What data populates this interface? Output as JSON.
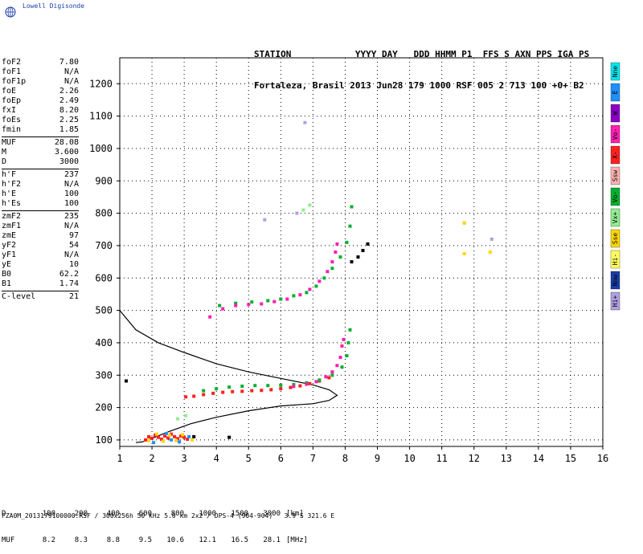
{
  "logo": {
    "text": "Lowell Digisonde",
    "icon": "globe-icon"
  },
  "header": {
    "line1": "STATION            YYYY DAY   DDD HHMM P1  FFS S AXN PPS IGA PS",
    "line2": "Fortaleza, Brasil 2013 Jun28 179 1000 RSF 005 2 713 100 +0+ B2"
  },
  "params": [
    {
      "name": "foF2",
      "value": "7.80"
    },
    {
      "name": "foF1",
      "value": "N/A"
    },
    {
      "name": "foF1p",
      "value": "N/A"
    },
    {
      "name": "foE",
      "value": "2.26"
    },
    {
      "name": "foEp",
      "value": "2.49"
    },
    {
      "name": "fxI",
      "value": "8.20"
    },
    {
      "name": "foEs",
      "value": "2.25"
    },
    {
      "name": "fmin",
      "value": "1.85"
    },
    {
      "sep": true
    },
    {
      "name": "MUF",
      "value": "28.08"
    },
    {
      "name": "M",
      "value": "3.600"
    },
    {
      "name": "D",
      "value": "3000"
    },
    {
      "sep": true
    },
    {
      "name": "h'F",
      "value": "237"
    },
    {
      "name": "h'F2",
      "value": "N/A"
    },
    {
      "name": "h'E",
      "value": "100"
    },
    {
      "name": "h'Es",
      "value": "100"
    },
    {
      "sep": true
    },
    {
      "name": "zmF2",
      "value": "235"
    },
    {
      "name": "zmF1",
      "value": "N/A"
    },
    {
      "name": "zmE",
      "value": "97"
    },
    {
      "name": "yF2",
      "value": "54"
    },
    {
      "name": "yF1",
      "value": "N/A"
    },
    {
      "name": "yE",
      "value": "10"
    },
    {
      "name": "B0",
      "value": "62.2"
    },
    {
      "name": "B1",
      "value": "1.74"
    },
    {
      "sep": true
    },
    {
      "name": "C-level",
      "value": "21"
    }
  ],
  "legend": [
    {
      "label": "Nne",
      "color": "#00e5ee"
    },
    {
      "label": "E",
      "color": "#1e90ff"
    },
    {
      "label": "W",
      "color": "#8b00c8"
    },
    {
      "label": "Vo-",
      "color": "#ff1fb0"
    },
    {
      "label": "X-",
      "color": "#ff2020"
    },
    {
      "label": "Ssw",
      "color": "#ffb0b0"
    },
    {
      "label": "Vo-",
      "color": "#00b030"
    },
    {
      "label": "Vx+",
      "color": "#90ee90"
    },
    {
      "label": "Sse",
      "color": "#ffd700"
    },
    {
      "label": "Hi-",
      "color": "#ffff60"
    },
    {
      "label": "Nnw",
      "color": "#1a3ea8"
    },
    {
      "label": "Hi+",
      "color": "#b0a0e0"
    }
  ],
  "footer": {
    "row1": [
      "D",
      "100",
      "200",
      "400",
      "600",
      "800",
      "1000",
      "1500",
      "3000",
      "[km]"
    ],
    "row2": [
      "MUF",
      "8.2",
      "8.3",
      "8.8",
      "9.5",
      "10.6",
      "12.1",
      "16.5",
      "28.1",
      "[MHz]"
    ],
    "fileinfo": "FZA0M_2013179100000.RSF / 300x256h 50 kHz 5.0 km 2x2 / DPS-4 (904-904)   3.9 S 321.6 E"
  },
  "chart_data": {
    "type": "scatter",
    "xlim": [
      1,
      16
    ],
    "ylim": [
      80,
      1280
    ],
    "xticks": [
      "1",
      "2",
      "3",
      "4",
      "5",
      "6",
      "7",
      "8",
      "9",
      "10",
      "11",
      "12",
      "13",
      "14",
      "15",
      "16"
    ],
    "yticks": [
      "100",
      "200",
      "300",
      "400",
      "500",
      "600",
      "700",
      "800",
      "900",
      "1000",
      "1100",
      "1200"
    ],
    "grid": true,
    "profile": [
      [
        1.0,
        500
      ],
      [
        1.5,
        440
      ],
      [
        2.2,
        400
      ],
      [
        3.0,
        370
      ],
      [
        4.0,
        335
      ],
      [
        5.0,
        310
      ],
      [
        6.0,
        290
      ],
      [
        7.0,
        270
      ],
      [
        7.5,
        255
      ],
      [
        7.75,
        238
      ],
      [
        7.5,
        222
      ],
      [
        7.0,
        212
      ],
      [
        6.0,
        205
      ],
      [
        5.0,
        190
      ],
      [
        4.0,
        170
      ],
      [
        3.2,
        150
      ],
      [
        2.5,
        125
      ],
      [
        2.0,
        105
      ],
      [
        1.7,
        94
      ],
      [
        1.5,
        92
      ]
    ],
    "series": [
      {
        "color": "#ff2020",
        "points": [
          [
            3.05,
            233
          ],
          [
            3.3,
            235
          ],
          [
            3.6,
            240
          ],
          [
            3.9,
            244
          ],
          [
            4.2,
            247
          ],
          [
            4.5,
            249
          ],
          [
            4.8,
            250
          ],
          [
            5.1,
            252
          ],
          [
            5.4,
            253
          ],
          [
            5.7,
            255
          ],
          [
            6.0,
            258
          ],
          [
            6.3,
            262
          ],
          [
            6.6,
            267
          ],
          [
            6.9,
            274
          ],
          [
            7.2,
            282
          ],
          [
            7.5,
            292
          ]
        ]
      },
      {
        "color": "#00b030",
        "points": [
          [
            3.6,
            252
          ],
          [
            4.0,
            258
          ],
          [
            4.4,
            263
          ],
          [
            4.8,
            266
          ],
          [
            5.2,
            268
          ],
          [
            5.6,
            268
          ],
          [
            6.0,
            269
          ],
          [
            6.4,
            271
          ],
          [
            6.8,
            276
          ],
          [
            7.2,
            285
          ],
          [
            7.6,
            300
          ],
          [
            7.9,
            325
          ],
          [
            8.05,
            360
          ],
          [
            8.1,
            400
          ],
          [
            8.15,
            440
          ]
        ]
      },
      {
        "color": "#ff1fb0",
        "points": [
          [
            6.4,
            265
          ],
          [
            6.8,
            272
          ],
          [
            7.1,
            280
          ],
          [
            7.4,
            295
          ],
          [
            7.6,
            310
          ],
          [
            7.75,
            330
          ],
          [
            7.85,
            355
          ],
          [
            7.9,
            390
          ],
          [
            7.95,
            410
          ]
        ]
      },
      {
        "color": "#00b030",
        "points": [
          [
            4.1,
            515
          ],
          [
            4.6,
            522
          ],
          [
            5.1,
            526
          ],
          [
            5.6,
            530
          ],
          [
            6.0,
            535
          ],
          [
            6.4,
            545
          ],
          [
            6.8,
            555
          ],
          [
            7.1,
            575
          ],
          [
            7.35,
            600
          ],
          [
            7.6,
            630
          ],
          [
            7.85,
            665
          ],
          [
            8.05,
            710
          ],
          [
            8.15,
            760
          ],
          [
            8.2,
            820
          ]
        ]
      },
      {
        "color": "#ff1fb0",
        "points": [
          [
            3.8,
            480
          ],
          [
            4.2,
            505
          ],
          [
            4.6,
            515
          ],
          [
            5.0,
            518
          ],
          [
            5.4,
            520
          ],
          [
            5.8,
            527
          ],
          [
            6.2,
            535
          ],
          [
            6.6,
            548
          ],
          [
            6.9,
            565
          ],
          [
            7.2,
            590
          ],
          [
            7.45,
            620
          ],
          [
            7.6,
            650
          ],
          [
            7.7,
            680
          ],
          [
            7.75,
            705
          ]
        ]
      },
      {
        "color": "#000000",
        "points": [
          [
            8.2,
            650
          ],
          [
            8.4,
            665
          ],
          [
            8.55,
            685
          ],
          [
            8.7,
            705
          ]
        ]
      },
      {
        "color": "#ff2020",
        "points": [
          [
            1.8,
            100
          ],
          [
            1.9,
            110
          ],
          [
            2.0,
            105
          ],
          [
            2.1,
            115
          ],
          [
            2.2,
            108
          ],
          [
            2.3,
            102
          ],
          [
            2.4,
            112
          ],
          [
            2.5,
            106
          ],
          [
            2.6,
            118
          ],
          [
            2.7,
            110
          ],
          [
            2.8,
            104
          ],
          [
            2.9,
            112
          ],
          [
            3.0,
            108
          ],
          [
            3.1,
            102
          ]
        ]
      },
      {
        "color": "#ffd700",
        "points": [
          [
            1.9,
            98
          ],
          [
            2.15,
            118
          ],
          [
            2.35,
            96
          ],
          [
            2.55,
            114
          ],
          [
            2.75,
            98
          ],
          [
            2.95,
            116
          ],
          [
            3.25,
            100
          ]
        ]
      },
      {
        "color": "#1e90ff",
        "points": [
          [
            2.05,
            92
          ],
          [
            2.45,
            120
          ],
          [
            2.85,
            94
          ],
          [
            3.15,
            110
          ],
          [
            2.6,
            100
          ]
        ]
      },
      {
        "color": "#b0a0e0",
        "points": [
          [
            11.7,
            770
          ],
          [
            12.55,
            720
          ],
          [
            6.75,
            1080
          ],
          [
            5.5,
            780
          ],
          [
            6.5,
            800
          ]
        ]
      },
      {
        "color": "#ffd700",
        "points": [
          [
            11.7,
            675
          ],
          [
            12.5,
            680
          ],
          [
            11.7,
            770
          ]
        ]
      },
      {
        "color": "#90ee90",
        "points": [
          [
            6.7,
            810
          ],
          [
            6.9,
            825
          ],
          [
            2.8,
            165
          ],
          [
            3.05,
            175
          ]
        ]
      },
      {
        "color": "#000000",
        "points": [
          [
            1.2,
            282
          ],
          [
            4.4,
            108
          ],
          [
            3.3,
            110
          ]
        ]
      }
    ]
  }
}
